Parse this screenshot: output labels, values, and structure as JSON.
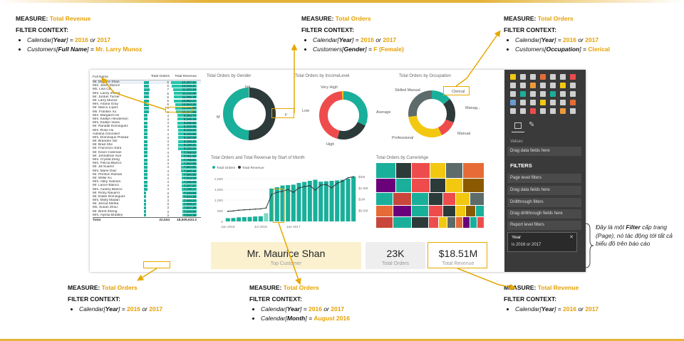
{
  "annotations": {
    "top_left": {
      "measure_label": "MEASURE:",
      "measure": "Total Revenue",
      "filter_label": "FILTER CONTEXT:",
      "items": [
        {
          "pre": "Calendar[",
          "key": "Year",
          "mid": "] = ",
          "v1": "2016",
          "or": " or ",
          "v2": "2017",
          "tail": ""
        },
        {
          "pre": "Customers[",
          "key": "Full Name",
          "mid": "] = ",
          "v1": "Mr. Larry Munoz",
          "or": "",
          "v2": "",
          "tail": ""
        }
      ]
    },
    "top_mid": {
      "measure_label": "MEASURE:",
      "measure": "Total Orders",
      "filter_label": "FILTER CONTEXT:",
      "items": [
        {
          "pre": "Calendar[",
          "key": "Year",
          "mid": "] = ",
          "v1": "2016",
          "or": " or ",
          "v2": "2017",
          "tail": ""
        },
        {
          "pre": "Customers[",
          "key": "Gender",
          "mid": "] = ",
          "v1": "F (Female)",
          "or": "",
          "v2": "",
          "tail": ""
        }
      ]
    },
    "top_right": {
      "measure_label": "MEASURE:",
      "measure": "Total Orders",
      "filter_label": "FILTER CONTEXT:",
      "items": [
        {
          "pre": "Calendar[",
          "key": "Year",
          "mid": "] = ",
          "v1": "2016",
          "or": " or ",
          "v2": "2017",
          "tail": ""
        },
        {
          "pre": "Customers[",
          "key": "Occupation",
          "mid": "] = ",
          "v1": "Clerical",
          "or": "",
          "v2": "",
          "tail": ""
        }
      ]
    },
    "bottom_left": {
      "measure_label": "MEASURE:",
      "measure": "Total Orders",
      "filter_label": "FILTER CONTEXT:",
      "items": [
        {
          "pre": "Calendar[",
          "key": "Year",
          "mid": "] = ",
          "v1": "2016",
          "or": " or ",
          "v2": "2017",
          "tail": ""
        }
      ]
    },
    "bottom_mid": {
      "measure_label": "MEASURE:",
      "measure": "Total Orders",
      "filter_label": "FILTER CONTEXT:",
      "items": [
        {
          "pre": "Calendar[",
          "key": "Year",
          "mid": "] = ",
          "v1": "2016",
          "or": " or ",
          "v2": "2017",
          "tail": ""
        },
        {
          "pre": "Calendar[",
          "key": "Month",
          "mid": "] = ",
          "v1": "August 2016",
          "or": "",
          "v2": "",
          "tail": ""
        }
      ]
    },
    "bottom_right": {
      "measure_label": "MEASURE:",
      "measure": "Total Revenue",
      "filter_label": "FILTER CONTEXT:",
      "items": [
        {
          "pre": "Calendar[",
          "key": "Year",
          "mid": "] = ",
          "v1": "2016",
          "or": " or ",
          "v2": "2017",
          "tail": ""
        }
      ]
    }
  },
  "table": {
    "headers": [
      "Full Name",
      "Total Orders",
      "Total Revenue"
    ],
    "rows": [
      [
        "Mr. Maurice Shan",
        6,
        "12,407.41"
      ],
      [
        "Mrs. Janet Munoz",
        6,
        "12,015.41"
      ],
      [
        "Ms. Lisa Cai",
        7,
        "11,330.48"
      ],
      [
        "Mrs. Lacey Zheng",
        6,
        "11,133.06"
      ],
      [
        "Mr. Jordan Turner",
        6,
        "11,085.19"
      ],
      [
        "Mr. Larry Munoz",
        6,
        "10,982.37"
      ],
      [
        "Mrs. Ariana Gray",
        6,
        "10,563.26"
      ],
      [
        "Mr. Marco Lopez",
        6,
        "10,266.60"
      ],
      [
        "Ms. Franklin Xu",
        6,
        "10,154.95"
      ],
      [
        "Mrs. Margaret He",
        4,
        "9,266.73"
      ],
      [
        "Mrs. Kaitlyn Henderson",
        4,
        "9,245.15"
      ],
      [
        "Mrs. Kaitlyn Isaza",
        4,
        "9,226.86"
      ],
      [
        "Mr. Randall Dominguez",
        4,
        "9,249.98"
      ],
      [
        "Mrs. Rose Hu",
        4,
        "9,215.22"
      ],
      [
        "Adriana Gonzalez",
        4,
        "9,193.85"
      ],
      [
        "Mrs. Dominique Prasad",
        4,
        "9,180.59"
      ],
      [
        "Mr. Brandon Gill",
        4,
        "9,158.40"
      ],
      [
        "Mr. Brad She",
        4,
        "9,130.21"
      ],
      [
        "Mr. Francisco Sara",
        4,
        "9,125.04"
      ],
      [
        "Mr. Kevin Coleman",
        4,
        "7,799.53"
      ],
      [
        "Mr. Johnathan Suri",
        4,
        "7,751.33"
      ],
      [
        "Mrs. Crystal Zeng",
        4,
        "7,708.81"
      ],
      [
        "Mrs. Felicia Blanco",
        4,
        "7,693.68"
      ],
      [
        "Mr. Jill Suarez",
        4,
        "7,652.61"
      ],
      [
        "Mrs. Marie Diaz",
        4,
        "7,590.49"
      ],
      [
        "Mr. Preston Raman",
        4,
        "7,396.86"
      ],
      [
        "Mr. Willie Xu",
        4,
        "7,313.33"
      ],
      [
        "Mrs. Abby Subram",
        4,
        "7,236.00"
      ],
      [
        "Mr. Lance Blanco",
        4,
        "7,227.07"
      ],
      [
        "Mrs. Audrey Blanco",
        4,
        "7,139.17"
      ],
      [
        "Mr. Ricky Navarro",
        3,
        "7,119.83"
      ],
      [
        "Mr. Eddie Dominguez",
        3,
        "7,044.38"
      ],
      [
        "Mrs. Molly Madan",
        3,
        "7,040.23"
      ],
      [
        "Mr. Jerrod Mehta",
        3,
        "7,038.27"
      ],
      [
        "Ms. Susan Zhou",
        3,
        "7,027.38"
      ],
      [
        "Mr. Brent Zheng",
        3,
        "7,019.65"
      ],
      [
        "Mrs. Alyssa Bradley",
        3,
        "7,010.29"
      ]
    ],
    "total_label": "Total",
    "total_orders": "22,534",
    "total_revenue": "18,509,633.2"
  },
  "gender": {
    "title": "Total Orders by Gender",
    "labels": {
      "na": "NA",
      "m": "M",
      "f": "F"
    },
    "slices": [
      {
        "name": "M",
        "value": 50.5,
        "color": "#2d3a3a"
      },
      {
        "name": "F",
        "value": 49,
        "color": "#1aaf9a"
      },
      {
        "name": "NA",
        "value": 0.5,
        "color": "#aaaaaa"
      }
    ]
  },
  "income": {
    "title": "Total Orders by IncomeLevel",
    "labels": {
      "very_high": "Very High",
      "average": "Average",
      "low": "Low",
      "high": "High"
    },
    "slices": [
      {
        "name": "Average",
        "value": 32,
        "color": "#1aaf9a"
      },
      {
        "name": "High",
        "value": 22,
        "color": "#2d3a3a"
      },
      {
        "name": "Low",
        "value": 45,
        "color": "#ee4c4c"
      },
      {
        "name": "Very High",
        "value": 1,
        "color": "#f2c811"
      }
    ]
  },
  "occupation": {
    "title": "Total Orders by Occupation",
    "labels": {
      "skilled": "Skilled Manual",
      "clerical": "Clerical",
      "management": "Manag...",
      "manual": "Manual",
      "professional": "Professional"
    },
    "slices": [
      {
        "name": "Clerical",
        "value": 14,
        "color": "#1aaf9a"
      },
      {
        "name": "Management",
        "value": 17,
        "color": "#2d3a3a"
      },
      {
        "name": "Manual",
        "value": 12,
        "color": "#ee4c4c"
      },
      {
        "name": "Professional",
        "value": 30,
        "color": "#f2c811"
      },
      {
        "name": "Skilled Manual",
        "value": 27,
        "color": "#5e6b6b"
      }
    ]
  },
  "combo": {
    "title": "Total Orders and Total Revenue by Start of Month",
    "legend": [
      "Total Orders",
      "Total Revenue"
    ],
    "y_ticks": [
      "2,000",
      "1,500",
      "1,000",
      "500",
      "0"
    ],
    "y2_ticks": [
      "$2M",
      "$1.5M",
      "$1M",
      "$0.5M"
    ],
    "x_ticks": [
      "Jan 2016",
      "Jul 2016",
      "Jan 2017"
    ],
    "chart_data": {
      "type": "bar",
      "orders": [
        150,
        160,
        190,
        200,
        210,
        230,
        240,
        380,
        1540,
        1600,
        1680,
        1700,
        1720,
        1800,
        1850,
        1900,
        1950,
        1860,
        1880,
        1900,
        1920,
        1950,
        2000,
        2100
      ],
      "revenue": [
        0.45,
        0.47,
        0.5,
        0.52,
        0.53,
        0.55,
        0.56,
        0.6,
        1.2,
        1.3,
        1.35,
        1.42,
        1.3,
        1.5,
        1.55,
        1.6,
        1.4,
        1.62,
        1.65,
        1.5,
        1.7,
        1.8,
        1.95,
        2.0
      ],
      "highlight_index": 7
    }
  },
  "treemap": {
    "title": "Total Orders by CurrentAge"
  },
  "cards": {
    "top_customer": "Mr. Maurice Shan",
    "top_customer_label": "Top Customer",
    "orders": "23K",
    "orders_label": "Total Orders",
    "revenue": "$18.51M",
    "revenue_label": "Total Revenue"
  },
  "pane": {
    "values_label": "Values",
    "drag_fields": "Drag data fields here",
    "filters_title": "FILTERS",
    "items": [
      "Page level filters",
      "Drag data fields here",
      "Drillthrough filters",
      "Drag drillthrough fields here",
      "Report level filters"
    ],
    "filter_card": {
      "field": "Year",
      "condition": "is 2016 or 2017"
    }
  },
  "note": {
    "pre": "Đây là một ",
    "bold": "Filter",
    "post": " cấp trang (Page), nó tác động tới tất cả biểu đồ trên báo cáo"
  }
}
